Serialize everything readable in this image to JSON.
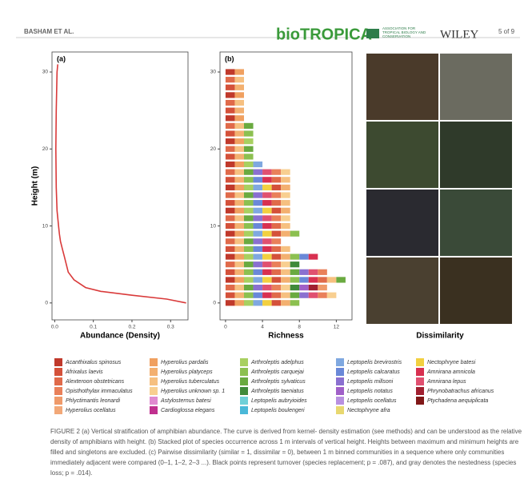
{
  "header": {
    "authors": "BASHAM ET AL.",
    "journal": "bioTROPICA",
    "association": "ASSOCIATION FOR TROPICAL BIOLOGY AND CONSERVATION",
    "publisher": "WILEY",
    "page": "5 of 9"
  },
  "chart_data": [
    {
      "type": "line",
      "title": "(a)",
      "x_label": "Abundance (Density)",
      "y_label": "Height (m)",
      "color": "#d93a3a",
      "heights": [
        0,
        0.5,
        1,
        1.5,
        2,
        3,
        4,
        5,
        6,
        7,
        8,
        9,
        10,
        12,
        15,
        20,
        25,
        30,
        31
      ],
      "values": [
        0.34,
        0.29,
        0.2,
        0.12,
        0.08,
        0.05,
        0.035,
        0.03,
        0.025,
        0.02,
        0.015,
        0.012,
        0.01,
        0.006,
        0.004,
        0.003,
        0.004,
        0.006,
        0.008
      ],
      "xlim": [
        -0.007,
        0.345
      ],
      "xticks": [
        {
          "value": 0,
          "label": "0.0"
        },
        0.1,
        0.2,
        0.3
      ],
      "ylim": [
        -2.2,
        32.6
      ],
      "yticks": [
        0,
        10,
        20,
        30
      ]
    },
    {
      "type": "bar",
      "title": "(b)",
      "x_label": "Richness",
      "categories": [
        0,
        1,
        2,
        3,
        4,
        5,
        6,
        7,
        8,
        9,
        10,
        11,
        12,
        13,
        14,
        15,
        16,
        17,
        18,
        19,
        20,
        21,
        22,
        23,
        24,
        25,
        26,
        27,
        28,
        29,
        30
      ],
      "values": [
        8,
        12,
        11,
        13,
        11,
        8,
        10,
        7,
        6,
        8,
        7,
        7,
        7,
        7,
        7,
        7,
        7,
        7,
        4,
        3,
        3,
        3,
        3,
        3,
        2,
        2,
        2,
        2,
        2,
        2,
        2
      ],
      "xlim": [
        -0.6,
        13.7
      ],
      "xticks": [
        0,
        4,
        8,
        12
      ],
      "ylim": [
        -2.2,
        32.6
      ],
      "yticks": [
        0,
        10,
        20,
        30
      ]
    }
  ],
  "photos": {
    "label": "Dissimilarity"
  },
  "legend": {
    "items": [
      {
        "name": "Acanthixalus spinosus",
        "color": "#c0392b"
      },
      {
        "name": "Afrixalus laevis",
        "color": "#d4513a"
      },
      {
        "name": "Alexteroon obstetricans",
        "color": "#e06a4a"
      },
      {
        "name": "Opisthothylax immaculatus",
        "color": "#e9805a"
      },
      {
        "name": "Phlyctimantis leonardi",
        "color": "#ef9a6a"
      },
      {
        "name": "Hyperolius ocellatus",
        "color": "#f2a878"
      },
      {
        "name": "Hyperolius pardalis",
        "color": "#f0a060"
      },
      {
        "name": "Hyperolius platyceps",
        "color": "#f3b070"
      },
      {
        "name": "Hyperolius tuberculatus",
        "color": "#f6c080"
      },
      {
        "name": "Hyperolius unknown sp. 1",
        "color": "#f8cf90"
      },
      {
        "name": "Astylosternus batesi",
        "color": "#e08ad0"
      },
      {
        "name": "Cardioglossa elegans",
        "color": "#c0308f"
      },
      {
        "name": "Arthroleptis adelphus",
        "color": "#a8d060"
      },
      {
        "name": "Arthroleptis carquejai",
        "color": "#8cc050"
      },
      {
        "name": "Arthroleptis sylvaticus",
        "color": "#6aaa40"
      },
      {
        "name": "Arthroleptis taeniatus",
        "color": "#3f8a3a"
      },
      {
        "name": "Leptopelis aubryioides",
        "color": "#6fd0d8"
      },
      {
        "name": "Leptopelis boulengeri",
        "color": "#4ab8d8"
      },
      {
        "name": "Leptopelis brevirostris",
        "color": "#7fa8e0"
      },
      {
        "name": "Leptopelis calcaratus",
        "color": "#6a88d8"
      },
      {
        "name": "Leptopelis millsoni",
        "color": "#8a70d0"
      },
      {
        "name": "Leptopelis notatus",
        "color": "#a060c8"
      },
      {
        "name": "Leptopelis ocellatus",
        "color": "#b890e0"
      },
      {
        "name": "Nectophryne afra",
        "color": "#e8d870"
      },
      {
        "name": "Nectophryne batesi",
        "color": "#f2d040"
      },
      {
        "name": "Amnirana amnicola",
        "color": "#d83050"
      },
      {
        "name": "Amnirana lepus",
        "color": "#e05070"
      },
      {
        "name": "Phrynobatrachus africanus",
        "color": "#a02030"
      },
      {
        "name": "Ptychadena aequiplicata",
        "color": "#801818"
      }
    ]
  },
  "caption": "FIGURE 2 (a) Vertical stratification of amphibian abundance. The curve is derived from kernel- density estimation (see methods) and can be understood as the relative density of amphibians with height. (b) Stacked plot of species occurrence across 1 m intervals of vertical height. Heights between maximum and minimum heights are filled and singletons are excluded. (c) Pairwise dissimilarity (similar = 1, dissimilar = 0), between 1 m binned communities in a sequence where only communities immediately adjacent were compared (0–1, 1–2, 2–3 ...). Black points represent turnover (species replacement; p = .087), and gray denotes the nestedness (species loss; p = .014)."
}
